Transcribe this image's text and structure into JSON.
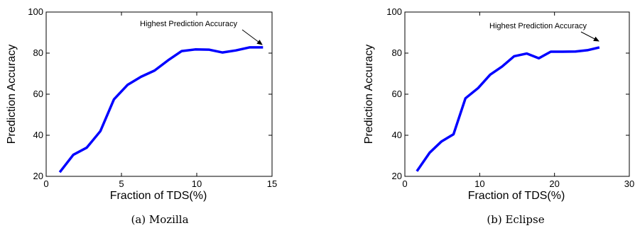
{
  "chart_data": [
    {
      "type": "line",
      "xlabel": "Fraction of TDS(%)",
      "ylabel": "Prediction Accuracy",
      "xlim": [
        0,
        15
      ],
      "ylim": [
        20,
        100
      ],
      "xticks": [
        "0",
        "5",
        "10",
        "15"
      ],
      "yticks": [
        "20",
        "40",
        "60",
        "80",
        "100"
      ],
      "caption": "(a)  Mozilla",
      "annotation": "Highest Prediction Accuracy",
      "series": [
        {
          "color": "#0000ff",
          "x": [
            0.9,
            1.8,
            2.7,
            3.6,
            4.5,
            5.4,
            6.3,
            7.2,
            8.1,
            9.0,
            9.9,
            10.8,
            11.7,
            12.6,
            13.5,
            14.4
          ],
          "y": [
            22,
            30.5,
            34,
            42,
            57.5,
            64.5,
            68.5,
            71.5,
            76.5,
            81,
            81.8,
            81.7,
            80.3,
            81.3,
            82.8,
            82.8
          ]
        }
      ]
    },
    {
      "type": "line",
      "xlabel": "Fraction of TDS(%)",
      "ylabel": "Prediction Accuracy",
      "xlim": [
        0,
        30
      ],
      "ylim": [
        20,
        100
      ],
      "xticks": [
        "0",
        "10",
        "20",
        "30"
      ],
      "yticks": [
        "20",
        "40",
        "60",
        "80",
        "100"
      ],
      "caption": "(b)  Eclipse",
      "annotation": "Highest Prediction Accuracy",
      "series": [
        {
          "color": "#0000ff",
          "x": [
            1.6,
            3.3,
            4.9,
            6.5,
            8.1,
            9.8,
            11.4,
            13.0,
            14.6,
            16.3,
            17.9,
            19.5,
            21.1,
            22.8,
            24.4,
            26.0
          ],
          "y": [
            22.5,
            31.5,
            37,
            40.5,
            58,
            63,
            69.5,
            73.5,
            78.5,
            79.8,
            77.5,
            80.7,
            80.7,
            80.8,
            81.4,
            82.8
          ]
        }
      ]
    }
  ]
}
